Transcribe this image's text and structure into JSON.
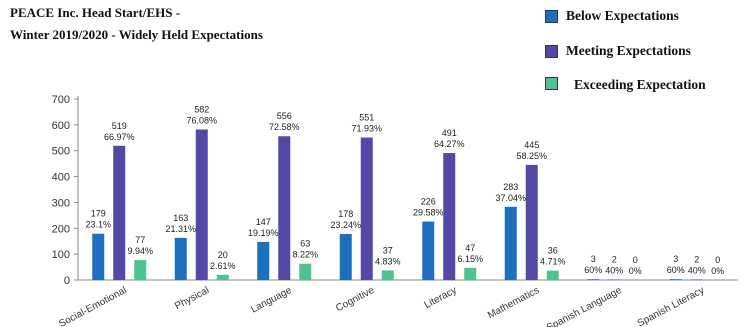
{
  "chart_data": {
    "type": "bar",
    "title_lines": [
      "PEACE Inc. Head Start/EHS -",
      "Winter 2019/2020 - Widely Held Expectations"
    ],
    "categories": [
      "Social-Emotional",
      "Physical",
      "Language",
      "Cognitive",
      "Literacy",
      "Mathematics",
      "Spanish Language",
      "Spanish Literacy"
    ],
    "series": [
      {
        "name": "Below Expectations",
        "color": "#1f6fbf",
        "values": [
          179,
          163,
          147,
          178,
          226,
          283,
          3,
          3
        ],
        "labels": [
          "23.1%",
          "21.31%",
          "19.19%",
          "23.24%",
          "29.58%",
          "37.04%",
          "60%",
          "60%"
        ]
      },
      {
        "name": "Meeting Expectations",
        "color": "#5448a6",
        "values": [
          519,
          582,
          556,
          551,
          491,
          445,
          2,
          2
        ],
        "labels": [
          "66.97%",
          "76.08%",
          "72.58%",
          "71.93%",
          "64.27%",
          "58.25%",
          "40%",
          "40%"
        ]
      },
      {
        "name": "Exceeding Expectation",
        "color": "#4ec392",
        "values": [
          77,
          20,
          63,
          37,
          47,
          36,
          0,
          0
        ],
        "labels": [
          "9.94%",
          "2.61%",
          "8.22%",
          "4.83%",
          "6.15%",
          "4.71%",
          "0%",
          "0%"
        ]
      }
    ],
    "ylim": [
      0,
      700
    ],
    "yticks": [
      0,
      100,
      200,
      300,
      400,
      500,
      600,
      700
    ],
    "grid": false,
    "legend_position": "top-right"
  }
}
